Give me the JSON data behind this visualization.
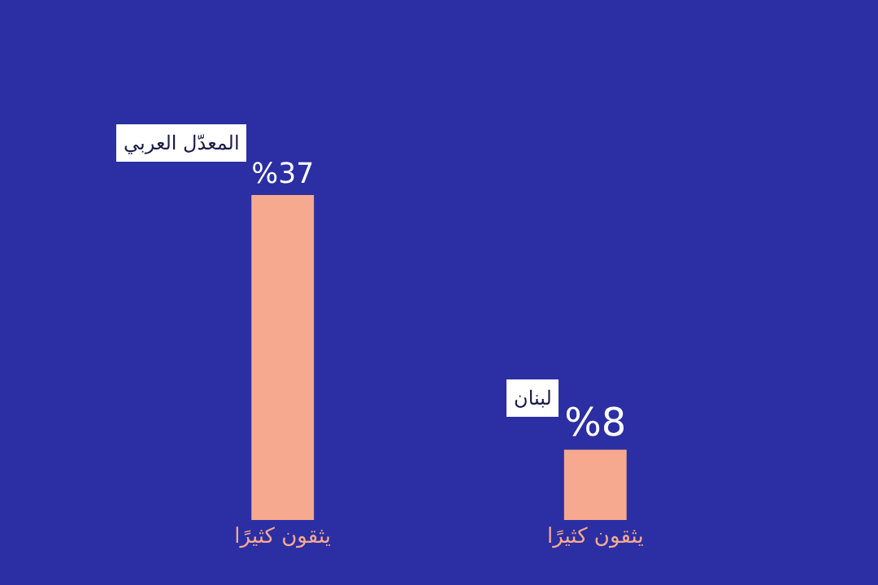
{
  "chart_data": {
    "type": "bar",
    "categories": [
      "يثقون كثيرًا",
      "يثقون كثيرًا"
    ],
    "series": [
      {
        "name": "المعدّل العربي",
        "color": "#f7a98f",
        "values": [
          37,
          null
        ],
        "value_labels": [
          "%37",
          null
        ]
      },
      {
        "name": "لبنان",
        "color": "#f7a98f",
        "values": [
          null,
          8
        ],
        "value_labels": [
          null,
          "%8"
        ]
      }
    ],
    "legend": false,
    "grid": false
  }
}
